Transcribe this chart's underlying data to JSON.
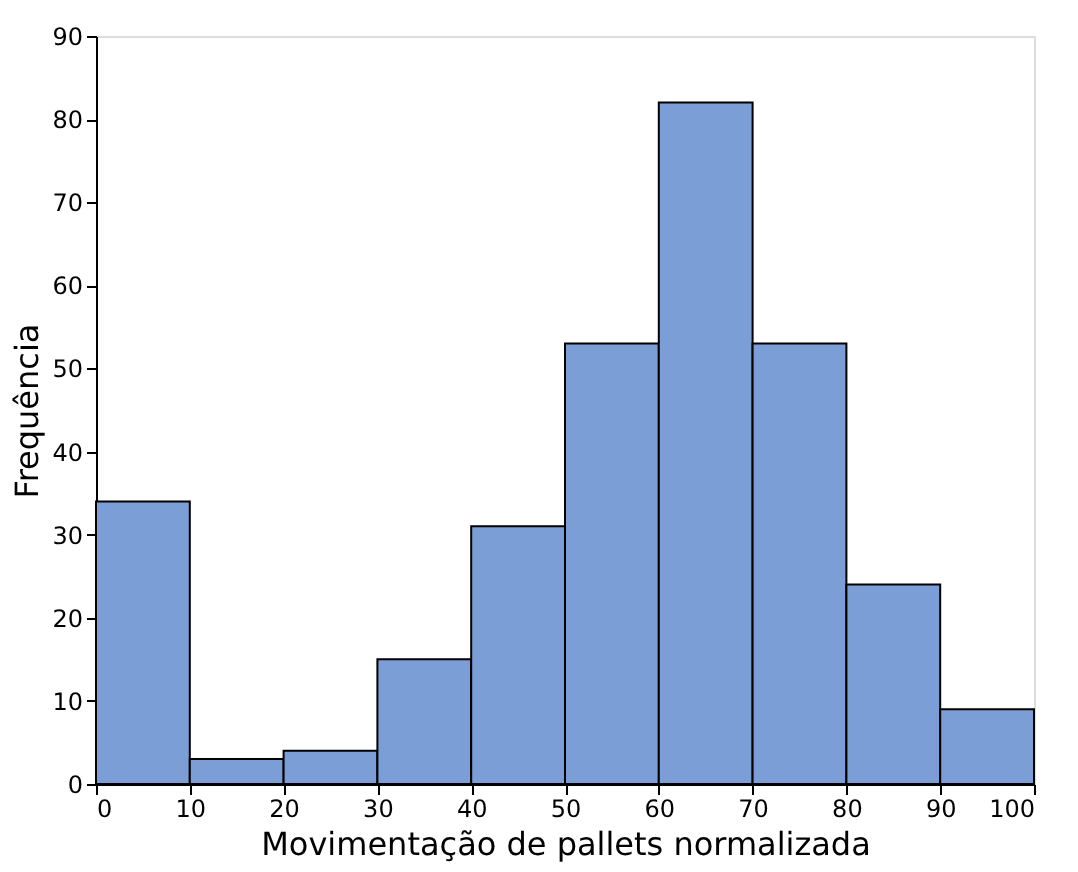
{
  "chart_data": {
    "type": "histogram",
    "xlabel": "Movimentação de pallets normalizada",
    "ylabel": "Frequência",
    "bins": [
      0,
      10,
      20,
      30,
      40,
      50,
      60,
      70,
      80,
      90,
      100
    ],
    "values": [
      34,
      3,
      4,
      15,
      31,
      53,
      82,
      53,
      24,
      9
    ],
    "color": "#7b9ed6",
    "xlim": [
      0,
      100
    ],
    "xticks": [
      0,
      10,
      20,
      30,
      40,
      50,
      60,
      70,
      80,
      90,
      100
    ],
    "ylim": [
      0,
      90
    ],
    "yticks": [
      0,
      10,
      20,
      30,
      40,
      50,
      60,
      70,
      80,
      90
    ],
    "grid": false
  }
}
